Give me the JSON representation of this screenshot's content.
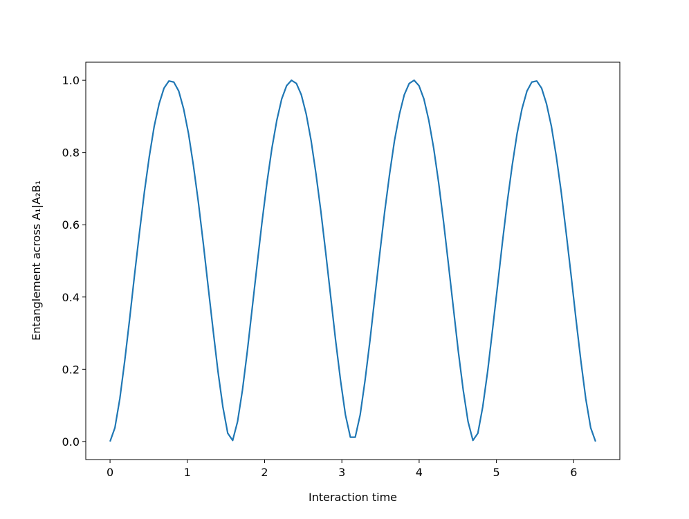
{
  "chart_data": {
    "type": "line",
    "x_label": "Interaction time",
    "y_label": "Entanglement across A₁|A₂B₁",
    "x": [
      0,
      0.063,
      0.127,
      0.19,
      0.254,
      0.317,
      0.381,
      0.444,
      0.508,
      0.571,
      0.635,
      0.698,
      0.762,
      0.825,
      0.889,
      0.952,
      1.015,
      1.079,
      1.142,
      1.206,
      1.269,
      1.333,
      1.396,
      1.46,
      1.523,
      1.587,
      1.65,
      1.714,
      1.777,
      1.84,
      1.904,
      1.967,
      2.031,
      2.094,
      2.158,
      2.221,
      2.285,
      2.348,
      2.412,
      2.475,
      2.539,
      2.602,
      2.665,
      2.729,
      2.792,
      2.856,
      2.919,
      2.983,
      3.046,
      3.11,
      3.173,
      3.237,
      3.3,
      3.364,
      3.427,
      3.491,
      3.554,
      3.618,
      3.681,
      3.745,
      3.808,
      3.871,
      3.935,
      3.998,
      4.062,
      4.125,
      4.189,
      4.252,
      4.316,
      4.379,
      4.443,
      4.506,
      4.57,
      4.633,
      4.696,
      4.76,
      4.823,
      4.887,
      4.95,
      5.014,
      5.077,
      5.141,
      5.204,
      5.268,
      5.331,
      5.395,
      5.458,
      5.522,
      5.585,
      5.648,
      5.712,
      5.775,
      5.839,
      5.902,
      5.966,
      6.029,
      6.093,
      6.156,
      6.22,
      6.283
    ],
    "series": [
      {
        "color": "#1f77b4",
        "values": [
          0,
          0.038,
          0.119,
          0.223,
          0.34,
          0.461,
          0.579,
          0.69,
          0.789,
          0.872,
          0.935,
          0.978,
          0.998,
          0.995,
          0.97,
          0.921,
          0.853,
          0.764,
          0.664,
          0.55,
          0.43,
          0.31,
          0.195,
          0.096,
          0.023,
          0.003,
          0.055,
          0.143,
          0.251,
          0.37,
          0.491,
          0.608,
          0.717,
          0.811,
          0.889,
          0.948,
          0.985,
          1.0,
          0.991,
          0.96,
          0.906,
          0.833,
          0.741,
          0.636,
          0.521,
          0.4,
          0.28,
          0.169,
          0.074,
          0.012,
          0.012,
          0.074,
          0.169,
          0.28,
          0.4,
          0.521,
          0.636,
          0.741,
          0.833,
          0.906,
          0.96,
          0.991,
          1.0,
          0.985,
          0.948,
          0.889,
          0.811,
          0.717,
          0.608,
          0.491,
          0.37,
          0.251,
          0.143,
          0.055,
          0.003,
          0.023,
          0.096,
          0.195,
          0.31,
          0.43,
          0.55,
          0.664,
          0.764,
          0.853,
          0.921,
          0.97,
          0.995,
          0.998,
          0.978,
          0.935,
          0.872,
          0.789,
          0.69,
          0.579,
          0.461,
          0.34,
          0.223,
          0.119,
          0.038,
          0
        ]
      }
    ],
    "xlim": [
      -0.314,
      6.597
    ],
    "ylim": [
      -0.05,
      1.05
    ],
    "xticks": [
      0,
      1,
      2,
      3,
      4,
      5,
      6
    ],
    "yticks": [
      {
        "value": 0,
        "label": "0.0"
      },
      0.2,
      0.4,
      0.6,
      0.8,
      {
        "value": 1,
        "label": "1.0"
      }
    ]
  }
}
